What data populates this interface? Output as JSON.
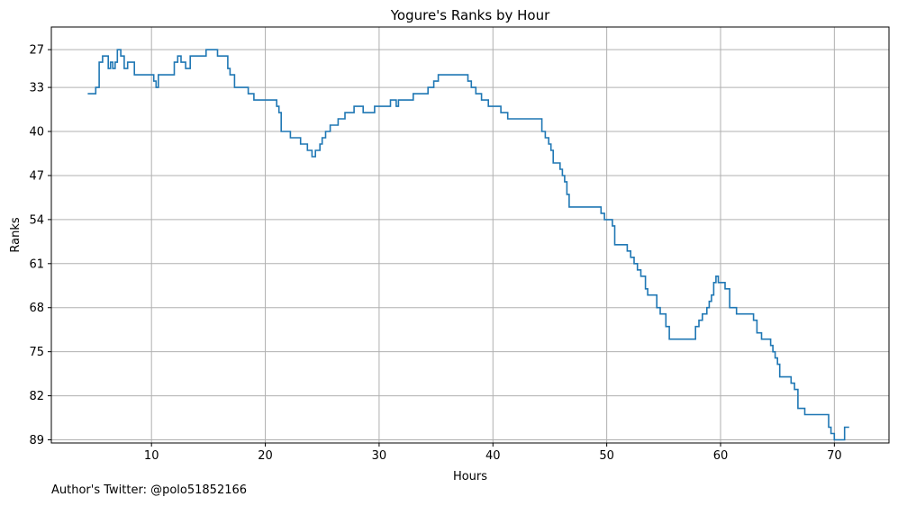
{
  "chart_data": {
    "type": "line",
    "title": "Yogure's Ranks by Hour",
    "xlabel": "Hours",
    "ylabel": "Ranks",
    "xlim": [
      1.2,
      74.8
    ],
    "ylim": [
      89.5,
      23.4
    ],
    "y_inverted": true,
    "x_ticks": [
      10,
      20,
      30,
      40,
      50,
      60,
      70
    ],
    "y_ticks": [
      27,
      33,
      40,
      47,
      54,
      61,
      68,
      75,
      82,
      89
    ],
    "grid": true,
    "line_style": "steps-post",
    "series": [
      {
        "color": "#1f77b4",
        "x": [
          4.4,
          5.1,
          5.4,
          5.7,
          6.2,
          6.4,
          6.6,
          6.8,
          7.0,
          7.3,
          7.6,
          7.9,
          8.5,
          10.2,
          10.4,
          10.6,
          12.0,
          12.3,
          12.6,
          13.0,
          13.4,
          14.8,
          15.8,
          16.7,
          16.9,
          17.3,
          18.5,
          19.0,
          21.0,
          21.2,
          21.4,
          22.2,
          23.1,
          23.7,
          24.1,
          24.4,
          24.8,
          25.0,
          25.3,
          25.7,
          26.4,
          27.0,
          27.8,
          28.6,
          29.6,
          31.0,
          31.5,
          31.7,
          33.0,
          34.3,
          34.8,
          35.2,
          37.8,
          38.1,
          38.5,
          39.0,
          39.6,
          40.7,
          41.3,
          41.6,
          44.3,
          44.6,
          44.9,
          45.1,
          45.3,
          45.9,
          46.1,
          46.3,
          46.5,
          46.7,
          49.3,
          49.5,
          49.8,
          50.5,
          50.7,
          51.8,
          52.1,
          52.4,
          52.7,
          53.0,
          53.4,
          53.6,
          54.4,
          54.7,
          55.2,
          55.5,
          57.8,
          58.1,
          58.4,
          58.8,
          59.0,
          59.2,
          59.4,
          59.6,
          59.8,
          60.4,
          60.8,
          61.2,
          61.4,
          62.9,
          63.2,
          63.6,
          64.4,
          64.6,
          64.8,
          65.0,
          65.2,
          66.2,
          66.5,
          66.8,
          67.4,
          68.0,
          69.5,
          69.7,
          70.0,
          70.7,
          70.9,
          71.2,
          71.3
        ],
        "y": [
          34,
          33,
          29,
          28,
          30,
          29,
          30,
          29,
          27,
          28,
          30,
          29,
          31,
          32,
          33,
          31,
          29,
          28,
          29,
          30,
          28,
          27,
          28,
          30,
          31,
          33,
          34,
          35,
          36,
          37,
          40,
          41,
          42,
          43,
          44,
          43,
          42,
          41,
          40,
          39,
          38,
          37,
          36,
          37,
          36,
          35,
          36,
          35,
          34,
          33,
          32,
          31,
          32,
          33,
          34,
          35,
          36,
          37,
          38,
          38,
          40,
          41,
          42,
          43,
          45,
          46,
          47,
          48,
          50,
          52,
          52,
          53,
          54,
          55,
          58,
          59,
          60,
          61,
          62,
          63,
          65,
          66,
          68,
          69,
          71,
          73,
          71,
          70,
          69,
          68,
          67,
          66,
          64,
          63,
          64,
          65,
          68,
          68,
          69,
          70,
          72,
          73,
          74,
          75,
          76,
          77,
          79,
          80,
          81,
          84,
          85,
          85,
          87,
          88,
          89,
          89,
          87,
          87,
          87
        ]
      }
    ]
  },
  "footnote": "Author's Twitter: @polo51852166"
}
